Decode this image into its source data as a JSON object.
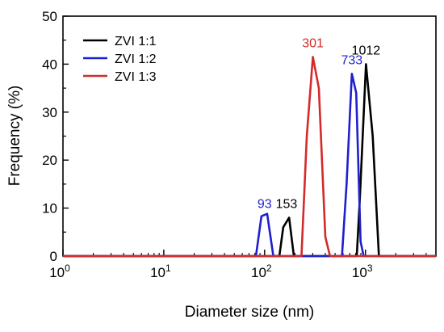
{
  "chart_data": {
    "type": "line",
    "xlabel": "Diameter size (nm)",
    "ylabel": "Frequency (%)",
    "x_scale": "log",
    "xlim": [
      1,
      5000
    ],
    "ylim": [
      0,
      50
    ],
    "x_ticks": [
      {
        "value": 1,
        "base": "10",
        "exp": "0"
      },
      {
        "value": 10,
        "base": "10",
        "exp": "1"
      },
      {
        "value": 100,
        "base": "10",
        "exp": "2"
      },
      {
        "value": 1000,
        "base": "10",
        "exp": "3"
      }
    ],
    "y_ticks": [
      "0",
      "10",
      "20",
      "30",
      "40",
      "50"
    ],
    "grid": false,
    "legend_position": "top-left",
    "series": [
      {
        "name": "ZVI 1:1",
        "color": "#000000",
        "points": [
          [
            1,
            0
          ],
          [
            140,
            0
          ],
          [
            153,
            6
          ],
          [
            175,
            8
          ],
          [
            195,
            0
          ],
          [
            820,
            0
          ],
          [
            880,
            12
          ],
          [
            1012,
            40
          ],
          [
            1180,
            25
          ],
          [
            1360,
            0
          ],
          [
            5000,
            0
          ]
        ]
      },
      {
        "name": "ZVI 1:2",
        "color": "#1f1fd0",
        "points": [
          [
            1,
            0
          ],
          [
            82,
            0
          ],
          [
            93,
            8.3
          ],
          [
            106,
            8.8
          ],
          [
            122,
            0
          ],
          [
            585,
            0
          ],
          [
            650,
            15
          ],
          [
            733,
            38
          ],
          [
            810,
            34
          ],
          [
            895,
            3
          ],
          [
            960,
            0
          ],
          [
            5000,
            0
          ]
        ]
      },
      {
        "name": "ZVI 1:3",
        "color": "#d42a2a",
        "points": [
          [
            1,
            0
          ],
          [
            232,
            0
          ],
          [
            262,
            25
          ],
          [
            301,
            41.5
          ],
          [
            345,
            35
          ],
          [
            400,
            4
          ],
          [
            445,
            0
          ],
          [
            5000,
            0
          ]
        ]
      }
    ],
    "annotations": [
      {
        "text": "93",
        "x": 100,
        "y": 9.5,
        "color": "#1f1fd0"
      },
      {
        "text": "153",
        "x": 165,
        "y": 9.5,
        "color": "#000000"
      },
      {
        "text": "301",
        "x": 301,
        "y": 43,
        "color": "#d42a2a"
      },
      {
        "text": "733",
        "x": 733,
        "y": 39.5,
        "color": "#1f1fd0"
      },
      {
        "text": "1012",
        "x": 1012,
        "y": 41.5,
        "color": "#000000"
      }
    ]
  }
}
